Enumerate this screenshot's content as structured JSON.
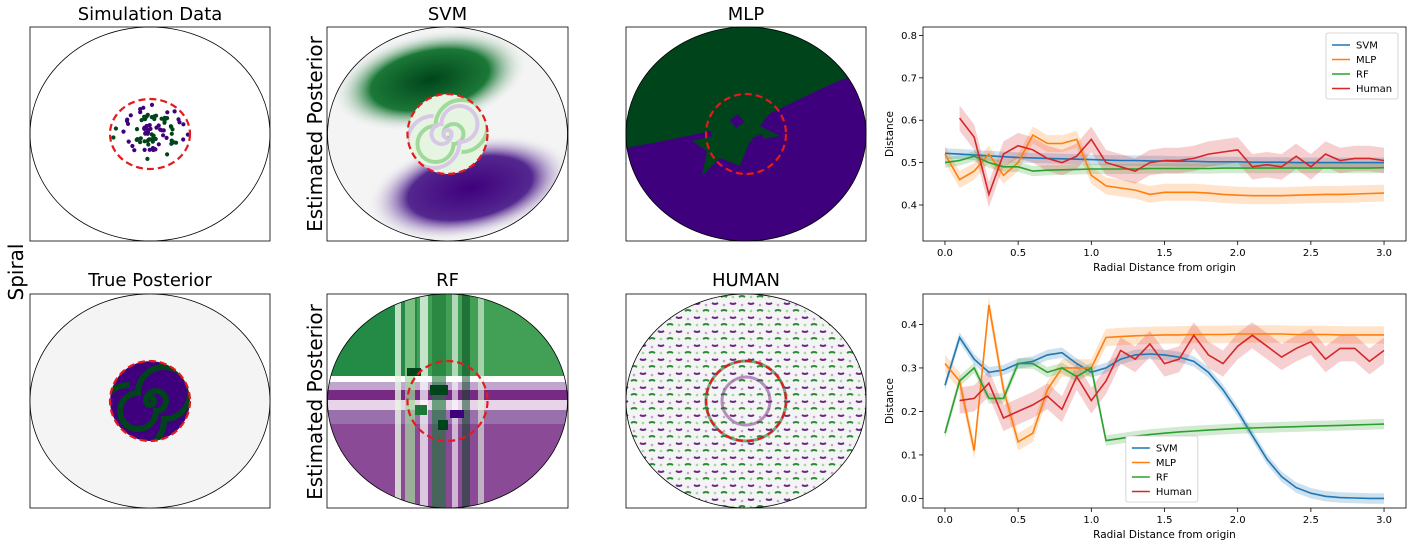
{
  "labels": {
    "row_label": "Spiral",
    "estimated_posterior": "Estimated Posterior"
  },
  "panels": {
    "simulation": {
      "title": "Simulation Data"
    },
    "svm": {
      "title": "SVM"
    },
    "mlp": {
      "title": "MLP"
    },
    "true_posterior": {
      "title": "True Posterior"
    },
    "rf": {
      "title": "RF"
    },
    "human": {
      "title": "HUMAN"
    }
  },
  "colors": {
    "green_dark": "#00441b",
    "green_mid": "#238b45",
    "green_light": "#a1d99b",
    "purple_dark": "#3f007d",
    "purple_mid": "#762a83",
    "purple_light": "#c2a5cf",
    "neutral": "#f7f7f7",
    "boundary": "#e41a1c"
  },
  "chart_data": [
    {
      "type": "line",
      "xlabel": "Radial Distance from origin",
      "ylabel": "Distance",
      "xlim": [
        -0.15,
        3.15
      ],
      "ylim": [
        0.315,
        0.82
      ],
      "xticks": [
        0.0,
        0.5,
        1.0,
        1.5,
        2.0,
        2.5,
        3.0
      ],
      "xtick_labels": [
        "0.0",
        "0.5",
        "1.0",
        "1.5",
        "2.0",
        "2.5",
        "3.0"
      ],
      "yticks": [
        0.4,
        0.5,
        0.6,
        0.7,
        0.8
      ],
      "ytick_labels": [
        "0.4",
        "0.5",
        "0.6",
        "0.7",
        "0.8"
      ],
      "legend_position": "top-right",
      "x": [
        0.0,
        0.1,
        0.2,
        0.3,
        0.4,
        0.5,
        0.6,
        0.7,
        0.8,
        0.9,
        1.0,
        1.1,
        1.2,
        1.3,
        1.4,
        1.5,
        1.6,
        1.7,
        1.8,
        1.9,
        2.0,
        2.1,
        2.2,
        2.3,
        2.4,
        2.5,
        2.6,
        2.7,
        2.8,
        2.9,
        3.0
      ],
      "series": [
        {
          "name": "SVM",
          "color": "#1f77b4",
          "band": 0.012,
          "values": [
            0.522,
            0.52,
            0.518,
            0.516,
            0.514,
            0.512,
            0.511,
            0.51,
            0.509,
            0.508,
            0.507,
            0.506,
            0.505,
            0.505,
            0.504,
            0.504,
            0.503,
            0.503,
            0.502,
            0.502,
            0.502,
            0.501,
            0.501,
            0.501,
            0.5,
            0.5,
            0.5,
            0.5,
            0.5,
            0.5,
            0.5
          ]
        },
        {
          "name": "MLP",
          "color": "#ff7f0e",
          "band": 0.02,
          "values": [
            0.52,
            0.46,
            0.48,
            0.52,
            0.47,
            0.5,
            0.565,
            0.545,
            0.545,
            0.555,
            0.47,
            0.445,
            0.44,
            0.435,
            0.425,
            0.43,
            0.43,
            0.43,
            0.428,
            0.425,
            0.423,
            0.422,
            0.422,
            0.422,
            0.423,
            0.424,
            0.425,
            0.425,
            0.426,
            0.427,
            0.428
          ]
        },
        {
          "name": "RF",
          "color": "#2ca02c",
          "band": 0.012,
          "values": [
            0.5,
            0.505,
            0.515,
            0.5,
            0.49,
            0.49,
            0.48,
            0.482,
            0.483,
            0.484,
            0.485,
            0.485,
            0.485,
            0.485,
            0.486,
            0.486,
            0.486,
            0.486,
            0.486,
            0.487,
            0.487,
            0.487,
            0.487,
            0.487,
            0.487,
            0.487,
            0.487,
            0.487,
            0.487,
            0.487,
            0.488
          ]
        },
        {
          "name": "Human",
          "color": "#d62728",
          "band": 0.03,
          "values": [
            null,
            0.605,
            0.56,
            0.425,
            0.52,
            0.54,
            0.53,
            0.51,
            0.5,
            0.515,
            0.555,
            0.5,
            0.49,
            0.48,
            0.5,
            0.505,
            0.505,
            0.51,
            0.52,
            0.525,
            0.53,
            0.49,
            0.495,
            0.49,
            0.515,
            0.49,
            0.52,
            0.505,
            0.51,
            0.51,
            0.505
          ]
        }
      ]
    },
    {
      "type": "line",
      "xlabel": "Radial Distance from origin",
      "ylabel": "Distance",
      "xlim": [
        -0.15,
        3.15
      ],
      "ylim": [
        -0.022,
        0.47
      ],
      "xticks": [
        0.0,
        0.5,
        1.0,
        1.5,
        2.0,
        2.5,
        3.0
      ],
      "xtick_labels": [
        "0.0",
        "0.5",
        "1.0",
        "1.5",
        "2.0",
        "2.5",
        "3.0"
      ],
      "yticks": [
        0.0,
        0.1,
        0.2,
        0.3,
        0.4
      ],
      "ytick_labels": [
        "0.0",
        "0.1",
        "0.2",
        "0.3",
        "0.4"
      ],
      "legend_position": "lower-center",
      "x": [
        0.0,
        0.1,
        0.2,
        0.3,
        0.4,
        0.5,
        0.6,
        0.7,
        0.8,
        0.9,
        1.0,
        1.1,
        1.2,
        1.3,
        1.4,
        1.5,
        1.6,
        1.7,
        1.8,
        1.9,
        2.0,
        2.1,
        2.2,
        2.3,
        2.4,
        2.5,
        2.6,
        2.7,
        2.8,
        2.9,
        3.0
      ],
      "series": [
        {
          "name": "SVM",
          "color": "#1f77b4",
          "band": 0.012,
          "values": [
            0.26,
            0.37,
            0.32,
            0.29,
            0.295,
            0.31,
            0.315,
            0.33,
            0.335,
            0.31,
            0.29,
            0.3,
            0.32,
            0.33,
            0.332,
            0.33,
            0.325,
            0.315,
            0.29,
            0.25,
            0.2,
            0.145,
            0.09,
            0.05,
            0.025,
            0.012,
            0.005,
            0.002,
            0.001,
            0.0,
            0.0
          ]
        },
        {
          "name": "MLP",
          "color": "#ff7f0e",
          "band": 0.02,
          "values": [
            0.31,
            0.27,
            0.11,
            0.445,
            0.25,
            0.13,
            0.15,
            0.25,
            0.3,
            0.3,
            0.3,
            0.37,
            0.372,
            0.374,
            0.375,
            0.376,
            0.376,
            0.377,
            0.377,
            0.377,
            0.378,
            0.378,
            0.378,
            0.378,
            0.377,
            0.377,
            0.377,
            0.376,
            0.376,
            0.376,
            0.376
          ]
        },
        {
          "name": "RF",
          "color": "#2ca02c",
          "band": 0.012,
          "values": [
            0.15,
            0.27,
            0.3,
            0.23,
            0.23,
            0.31,
            0.31,
            0.29,
            0.3,
            0.28,
            0.3,
            0.133,
            0.138,
            0.143,
            0.147,
            0.15,
            0.153,
            0.155,
            0.157,
            0.159,
            0.161,
            0.162,
            0.163,
            0.164,
            0.165,
            0.166,
            0.167,
            0.168,
            0.169,
            0.17,
            0.171
          ]
        },
        {
          "name": "Human",
          "color": "#d62728",
          "band": 0.03,
          "values": [
            null,
            0.225,
            0.23,
            0.265,
            0.185,
            0.2,
            0.215,
            0.235,
            0.205,
            0.28,
            0.225,
            0.27,
            0.34,
            0.32,
            0.355,
            0.31,
            0.32,
            0.375,
            0.33,
            0.31,
            0.35,
            0.375,
            0.35,
            0.325,
            0.345,
            0.36,
            0.32,
            0.345,
            0.345,
            0.315,
            0.34
          ]
        }
      ]
    }
  ]
}
